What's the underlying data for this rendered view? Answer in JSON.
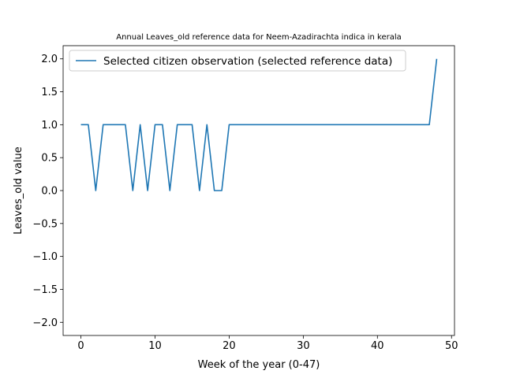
{
  "chart_data": {
    "type": "line",
    "title": "Annual Leaves_old reference data for Neem-Azadirachta indica in kerala",
    "xlabel": "Week of the year (0-47)",
    "ylabel": "Leaves_old value",
    "xlim": [
      -2.4,
      50.4
    ],
    "ylim": [
      -2.2,
      2.2
    ],
    "xticks": [
      0,
      10,
      20,
      30,
      40,
      50
    ],
    "yticks": [
      -2.0,
      -1.5,
      -1.0,
      -0.5,
      0.0,
      0.5,
      1.0,
      1.5,
      2.0
    ],
    "xtick_labels": [
      "0",
      "10",
      "20",
      "30",
      "40",
      "50"
    ],
    "ytick_labels": [
      "−2.0",
      "−1.5",
      "−1.0",
      "−0.5",
      "0.0",
      "0.5",
      "1.0",
      "1.5",
      "2.0"
    ],
    "grid": false,
    "legend_position": "top-left",
    "color": "#1f77b4",
    "series": [
      {
        "name": "Selected citizen observation (selected reference data)",
        "x": [
          0,
          1,
          2,
          3,
          4,
          5,
          6,
          7,
          8,
          9,
          10,
          11,
          12,
          13,
          14,
          15,
          16,
          17,
          18,
          19,
          20,
          21,
          22,
          23,
          24,
          25,
          26,
          27,
          28,
          29,
          30,
          31,
          32,
          33,
          34,
          35,
          36,
          37,
          38,
          39,
          40,
          41,
          42,
          43,
          44,
          45,
          46,
          47,
          48
        ],
        "y": [
          1,
          1,
          0,
          1,
          1,
          1,
          1,
          0,
          1,
          0,
          1,
          1,
          0,
          1,
          1,
          1,
          0,
          1,
          0,
          0,
          1,
          1,
          1,
          1,
          1,
          1,
          1,
          1,
          1,
          1,
          1,
          1,
          1,
          1,
          1,
          1,
          1,
          1,
          1,
          1,
          1,
          1,
          1,
          1,
          1,
          1,
          1,
          1,
          2
        ]
      }
    ]
  }
}
